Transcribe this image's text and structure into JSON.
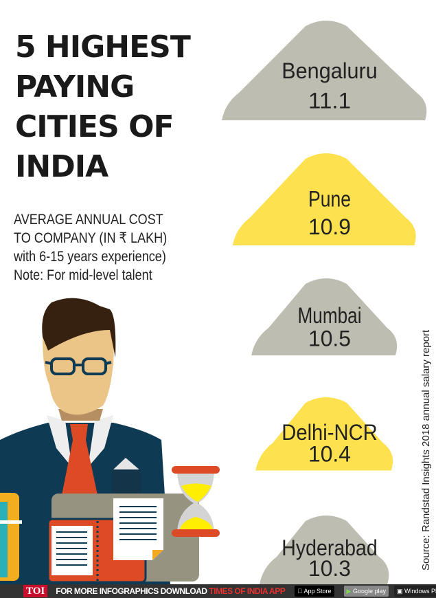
{
  "title_lines": [
    "5 HIGHEST",
    "PAYING",
    "CITIES OF",
    "INDIA"
  ],
  "subtitle_lines": [
    "AVERAGE ANNUAL COST",
    "TO COMPANY (IN ₹ LAKH)",
    "with 6-15 years experience)",
    "Note: For mid-level talent"
  ],
  "source": "Source: Randstad Insights 2018 annual salary report",
  "colors": {
    "gray": "#bdbdb1",
    "yellow": "#fde14f",
    "text": "#222222"
  },
  "chart_data": {
    "type": "bar",
    "title": "5 HIGHEST PAYING CITIES OF INDIA",
    "ylabel": "Average annual cost to company (in ₹ lakh)",
    "categories": [
      "Bengaluru",
      "Pune",
      "Mumbai",
      "Delhi-NCR",
      "Hyderabad"
    ],
    "values": [
      11.1,
      10.9,
      10.5,
      10.4,
      10.3
    ],
    "value_labels": [
      "11.1",
      "10.9",
      "10.5",
      "10.4",
      "10.3"
    ],
    "fill": [
      "gray",
      "yellow",
      "gray",
      "yellow",
      "gray"
    ]
  },
  "footer": {
    "brand": "TOI",
    "text_white": "FOR MORE  INFOGRAPHICS DOWNLOAD ",
    "text_red": "TIMES OF INDIA  APP",
    "app_store": "App Store",
    "google_play": "Google play",
    "windows_phone": "Windows Phone"
  }
}
